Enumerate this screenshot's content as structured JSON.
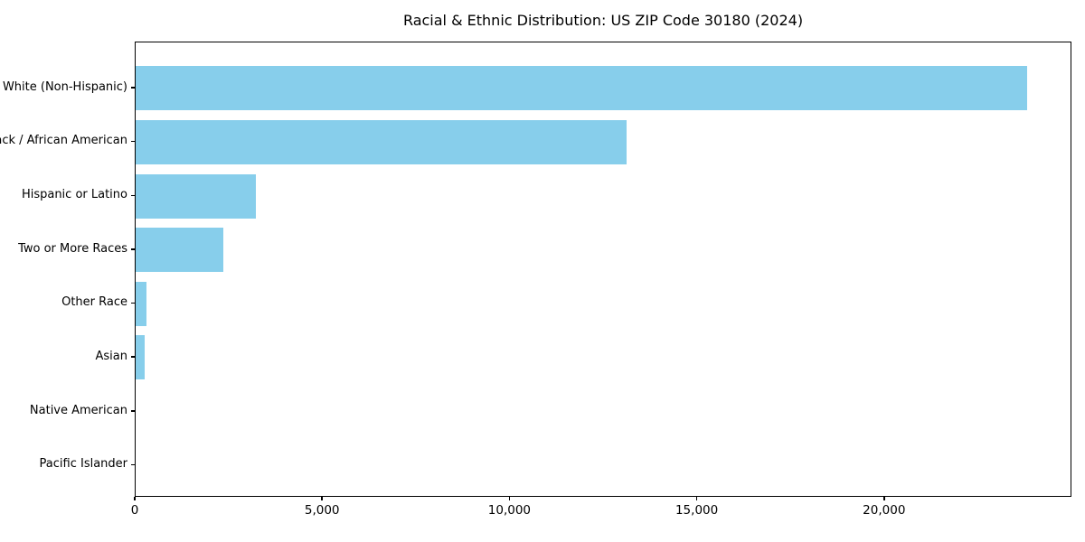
{
  "title": "Racial & Ethnic Distribution: US ZIP Code 30180 (2024)",
  "colors": {
    "bar": "#87CEEB",
    "axis": "#000000",
    "text": "#000000",
    "background": "#FFFFFF"
  },
  "chart_data": {
    "type": "bar",
    "orientation": "horizontal",
    "title": "Racial & Ethnic Distribution: US ZIP Code 30180 (2024)",
    "xlabel": "",
    "ylabel": "",
    "categories": [
      "White (Non-Hispanic)",
      "Black / African American",
      "Hispanic or Latino",
      "Two or More Races",
      "Other Race",
      "Asian",
      "Native American",
      "Pacific Islander"
    ],
    "values": [
      23800,
      13100,
      3200,
      2340,
      300,
      240,
      50,
      15
    ],
    "xlim": [
      0,
      25000
    ],
    "xticks": {
      "values": [
        0,
        5000,
        10000,
        15000,
        20000
      ],
      "labels": [
        "0",
        "5,000",
        "10,000",
        "15,000",
        "20,000"
      ]
    },
    "grid": false,
    "legend": "none",
    "bar_color": "#87CEEB"
  }
}
